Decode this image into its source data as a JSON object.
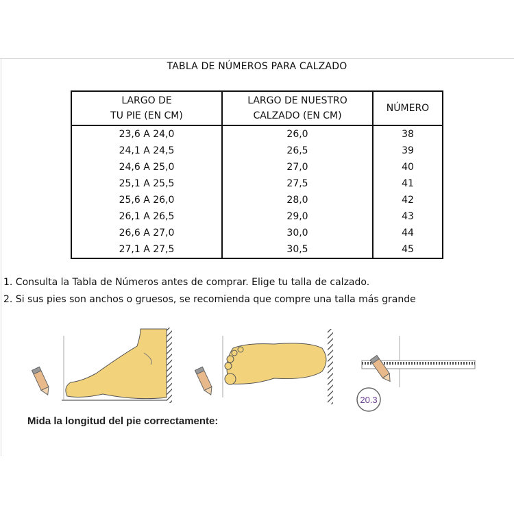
{
  "title": "TABLA DE NÚMEROS PARA CALZADO",
  "table": {
    "headers": [
      {
        "line1": "LARGO DE",
        "line2": "TU PIE (EN CM)"
      },
      {
        "line1": "LARGO DE NUESTRO",
        "line2": "CALZADO (EN CM)"
      },
      {
        "line1": "NÚMERO",
        "line2": ""
      }
    ],
    "rows": [
      [
        "23,6 A 24,0",
        "26,0",
        "38"
      ],
      [
        "24,1 A 24,5",
        "26,5",
        "39"
      ],
      [
        "24,6 A 25,0",
        "27,0",
        "40"
      ],
      [
        "25,1 A 25,5",
        "27,5",
        "41"
      ],
      [
        "25,6 A 26,0",
        "28,0",
        "42"
      ],
      [
        "26,1 A 26,5",
        "29,0",
        "43"
      ],
      [
        "26,6 A 27,0",
        "30,0",
        "44"
      ],
      [
        "27,1 A 27,5",
        "30,5",
        "45"
      ]
    ]
  },
  "notes": [
    "1. Consulta la Tabla de Números antes de comprar. Elige tu talla de calzado.",
    "2. Si sus pies son anchos o gruesos, se recomienda que compre una talla más grande"
  ],
  "illustration": {
    "measurement": "20.3",
    "caption": "Mida la longitud del pie correctamente:",
    "foot_color": "#f2d27a",
    "measure_color": "#6a3d8f"
  }
}
